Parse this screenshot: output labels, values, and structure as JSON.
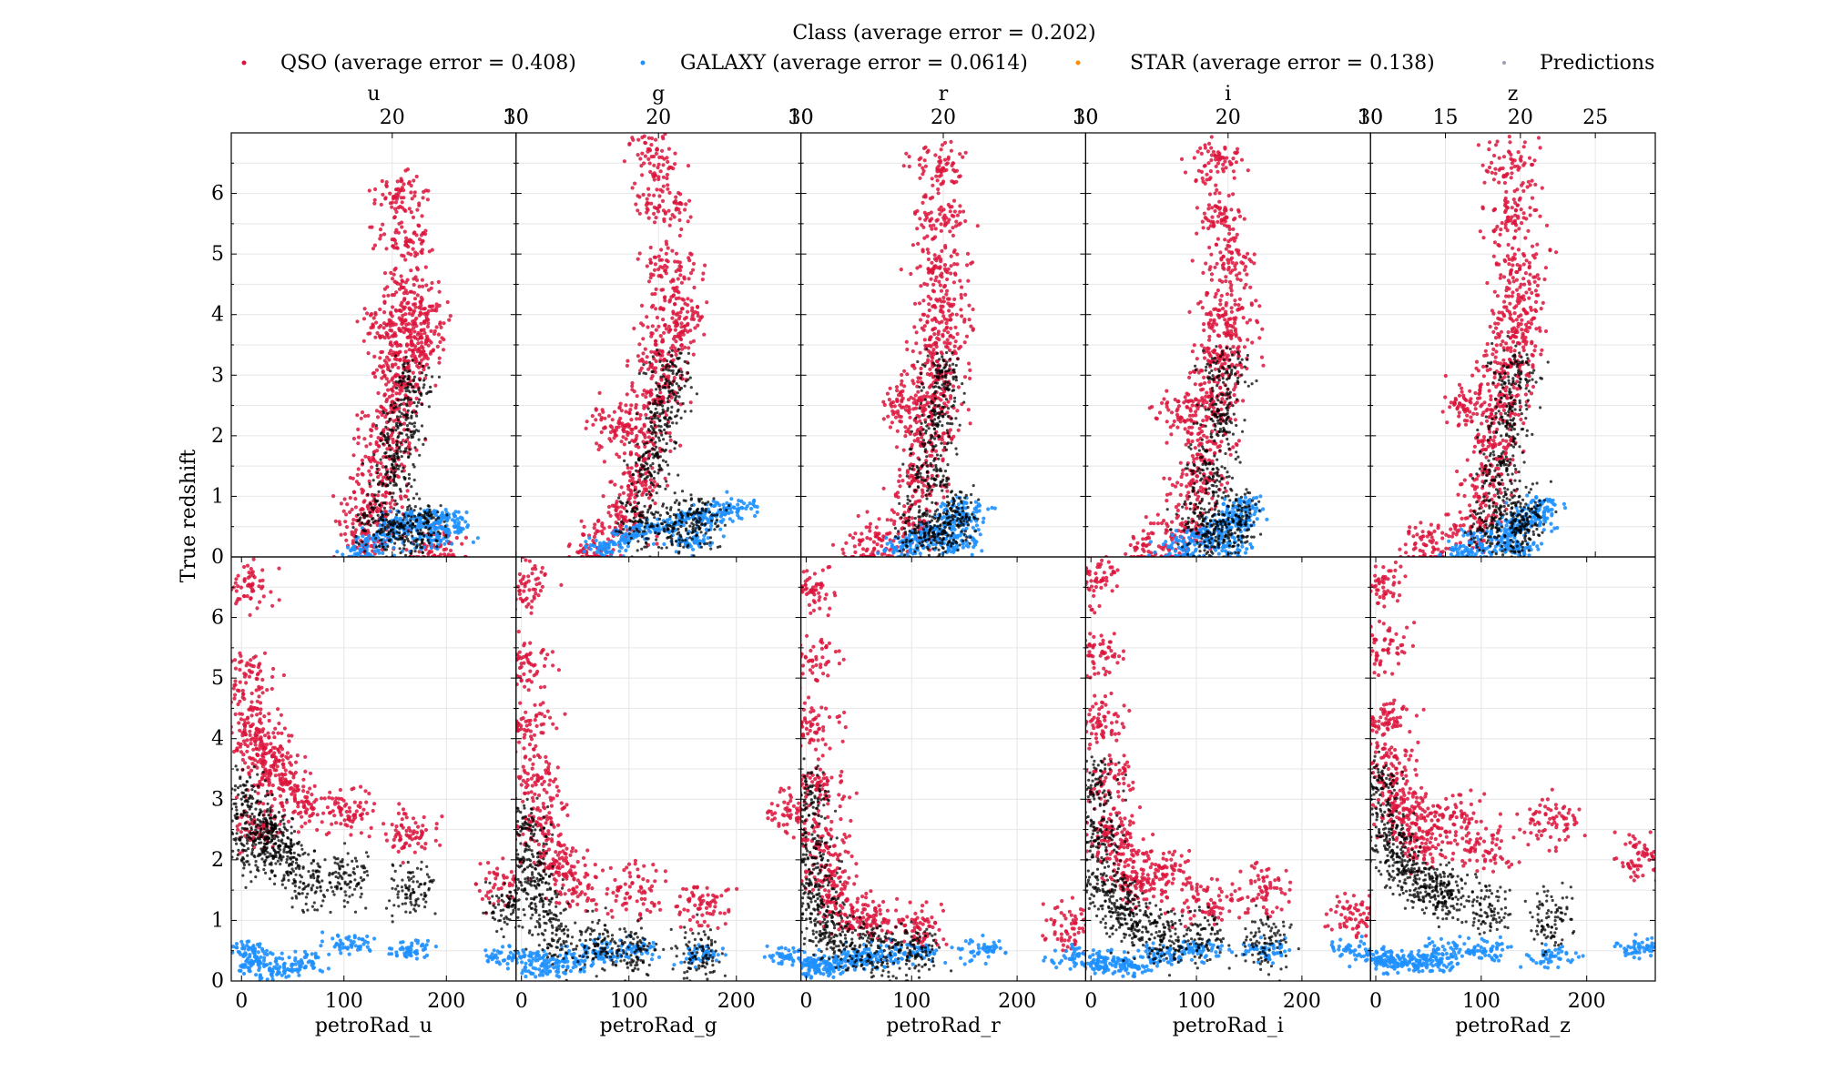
{
  "legend": {
    "title": "Class (average error = 0.202)",
    "items": [
      {
        "label": "QSO (average error = 0.408)",
        "color": "#dc143c"
      },
      {
        "label": "GALAXY (average error = 0.0614)",
        "color": "#1e90ff"
      },
      {
        "label": "STAR (average error = 0.138)",
        "color": "#ff8c00"
      },
      {
        "label": "Predictions",
        "color": "#9aa0b4"
      }
    ]
  },
  "colors": {
    "QSO": "#dc143c",
    "GALAXY": "#1e90ff",
    "STAR": "#ff8c00",
    "Predictions": "#000000"
  },
  "ylabel": "True redshift",
  "chart_data": {
    "type": "scatter",
    "ylabel": "True redshift",
    "ylim": [
      0,
      7
    ],
    "yticks": [
      0,
      1,
      2,
      3,
      4,
      5,
      6
    ],
    "grid": true,
    "legend_placement": "top",
    "series": [
      "QSO",
      "GALAXY",
      "STAR",
      "Predictions"
    ],
    "top_row": [
      {
        "xlabel": "u",
        "xlim": [
          7,
          30
        ],
        "xticks": [
          20,
          30
        ],
        "xticklabels": [
          "20",
          "30"
        ],
        "qso": [
          [
            18.2,
            0.7
          ],
          [
            19.0,
            1.2
          ],
          [
            19.5,
            1.8
          ],
          [
            20.0,
            2.4
          ],
          [
            20.6,
            2.9
          ],
          [
            21.2,
            3.3
          ],
          [
            21.8,
            3.6
          ],
          [
            22.1,
            3.9
          ],
          [
            21.5,
            4.4
          ],
          [
            21.0,
            5.2
          ],
          [
            20.6,
            6.0
          ],
          [
            19.6,
            3.8
          ],
          [
            17.9,
            0.3
          ],
          [
            23.5,
            0.1
          ]
        ],
        "galaxy": [
          [
            17.8,
            0.1
          ],
          [
            19.2,
            0.35
          ],
          [
            20.6,
            0.55
          ],
          [
            22.0,
            0.6
          ],
          [
            23.8,
            0.65
          ],
          [
            24.6,
            0.45
          ],
          [
            22.8,
            0.3
          ]
        ],
        "pred": [
          [
            19.0,
            0.6
          ],
          [
            20.0,
            1.4
          ],
          [
            20.8,
            2.1
          ],
          [
            21.5,
            2.8
          ],
          [
            20.8,
            0.4
          ],
          [
            22.5,
            0.5
          ]
        ]
      },
      {
        "xlabel": "g",
        "xlim": [
          10,
          30
        ],
        "xticks": [
          10,
          20,
          30
        ],
        "xticklabels": [
          "10",
          "20",
          "30"
        ],
        "qso": [
          [
            17.5,
            0.6
          ],
          [
            18.5,
            1.2
          ],
          [
            19.2,
            1.9
          ],
          [
            19.8,
            2.6
          ],
          [
            20.3,
            3.2
          ],
          [
            20.8,
            3.7
          ],
          [
            21.2,
            4.1
          ],
          [
            20.8,
            4.8
          ],
          [
            20.4,
            5.8
          ],
          [
            20.0,
            6.6
          ],
          [
            17.0,
            2.2
          ],
          [
            15.5,
            0.1
          ]
        ],
        "galaxy": [
          [
            16.5,
            0.15
          ],
          [
            18.0,
            0.35
          ],
          [
            20.0,
            0.5
          ],
          [
            22.2,
            0.62
          ],
          [
            24.0,
            0.7
          ],
          [
            25.5,
            0.8
          ],
          [
            22.5,
            0.25
          ]
        ],
        "pred": [
          [
            18.5,
            0.6
          ],
          [
            19.5,
            1.5
          ],
          [
            20.3,
            2.3
          ],
          [
            20.8,
            3.0
          ],
          [
            21.0,
            0.5
          ],
          [
            23.0,
            0.6
          ]
        ]
      },
      {
        "xlabel": "r",
        "xlim": [
          10,
          30
        ],
        "xticks": [
          10,
          20,
          30
        ],
        "xticklabels": [
          "10",
          "20",
          "30"
        ],
        "qso": [
          [
            17.5,
            0.5
          ],
          [
            18.2,
            1.2
          ],
          [
            18.8,
            1.9
          ],
          [
            19.2,
            2.6
          ],
          [
            19.6,
            3.1
          ],
          [
            19.9,
            3.6
          ],
          [
            20.1,
            4.1
          ],
          [
            20.0,
            4.8
          ],
          [
            19.7,
            5.6
          ],
          [
            19.6,
            6.5
          ],
          [
            17.2,
            2.5
          ],
          [
            15.0,
            0.2
          ]
        ],
        "galaxy": [
          [
            17.0,
            0.15
          ],
          [
            18.5,
            0.3
          ],
          [
            20.0,
            0.45
          ],
          [
            21.0,
            0.6
          ],
          [
            21.5,
            0.8
          ],
          [
            20.8,
            0.2
          ]
        ],
        "pred": [
          [
            18.2,
            0.5
          ],
          [
            19.0,
            1.4
          ],
          [
            19.6,
            2.2
          ],
          [
            20.0,
            3.0
          ],
          [
            19.8,
            0.4
          ],
          [
            21.0,
            0.7
          ]
        ]
      },
      {
        "xlabel": "i",
        "xlim": [
          10,
          30
        ],
        "xticks": [
          10,
          20,
          30
        ],
        "xticklabels": [
          "10",
          "20",
          "30"
        ],
        "qso": [
          [
            17.2,
            0.5
          ],
          [
            17.9,
            1.2
          ],
          [
            18.5,
            1.9
          ],
          [
            19.0,
            2.6
          ],
          [
            19.4,
            3.1
          ],
          [
            19.7,
            3.6
          ],
          [
            19.9,
            4.1
          ],
          [
            19.8,
            4.8
          ],
          [
            19.5,
            5.6
          ],
          [
            19.4,
            6.5
          ],
          [
            16.8,
            2.4
          ],
          [
            14.5,
            0.2
          ]
        ],
        "galaxy": [
          [
            16.5,
            0.1
          ],
          [
            18.0,
            0.3
          ],
          [
            19.6,
            0.45
          ],
          [
            20.5,
            0.6
          ],
          [
            21.0,
            0.85
          ],
          [
            20.2,
            0.15
          ]
        ],
        "pred": [
          [
            17.9,
            0.5
          ],
          [
            18.7,
            1.4
          ],
          [
            19.3,
            2.2
          ],
          [
            19.7,
            3.0
          ],
          [
            19.5,
            0.4
          ],
          [
            20.6,
            0.7
          ]
        ]
      },
      {
        "xlabel": "z",
        "xlim": [
          10,
          29
        ],
        "xticks": [
          10,
          15,
          20,
          25
        ],
        "xticklabels": [
          "10",
          "15",
          "20",
          "25"
        ],
        "qso": [
          [
            17.0,
            0.5
          ],
          [
            17.8,
            1.2
          ],
          [
            18.4,
            1.9
          ],
          [
            18.9,
            2.6
          ],
          [
            19.3,
            3.1
          ],
          [
            19.7,
            3.6
          ],
          [
            19.9,
            4.1
          ],
          [
            19.8,
            4.8
          ],
          [
            19.4,
            5.6
          ],
          [
            19.3,
            6.5
          ],
          [
            16.5,
            2.5
          ],
          [
            14.0,
            0.2
          ]
        ],
        "galaxy": [
          [
            16.2,
            0.1
          ],
          [
            17.8,
            0.3
          ],
          [
            19.4,
            0.45
          ],
          [
            20.6,
            0.6
          ],
          [
            21.2,
            0.85
          ],
          [
            20.0,
            0.15
          ]
        ],
        "pred": [
          [
            17.8,
            0.5
          ],
          [
            18.6,
            1.4
          ],
          [
            19.2,
            2.2
          ],
          [
            19.6,
            3.0
          ],
          [
            19.4,
            0.4
          ],
          [
            20.4,
            0.7
          ]
        ]
      }
    ],
    "bottom_row": [
      {
        "xlabel": "petroRad_u",
        "xlim": [
          -10,
          268
        ],
        "xticks": [
          0,
          100,
          200
        ],
        "xticklabels": [
          "0",
          "100",
          "200"
        ],
        "qso": [
          [
            2,
            6.5
          ],
          [
            4,
            5.0
          ],
          [
            8,
            4.3
          ],
          [
            18,
            3.9
          ],
          [
            28,
            3.6
          ],
          [
            40,
            3.4
          ],
          [
            60,
            2.9
          ],
          [
            105,
            2.8
          ],
          [
            165,
            2.4
          ],
          [
            260,
            1.6
          ],
          [
            12,
            2.6
          ]
        ],
        "galaxy": [
          [
            5,
            0.5
          ],
          [
            15,
            0.3
          ],
          [
            30,
            0.2
          ],
          [
            60,
            0.3
          ],
          [
            105,
            0.6
          ],
          [
            165,
            0.5
          ],
          [
            260,
            0.4
          ]
        ],
        "pred": [
          [
            4,
            3.0
          ],
          [
            10,
            2.2
          ],
          [
            20,
            2.5
          ],
          [
            30,
            2.4
          ],
          [
            45,
            2.1
          ],
          [
            65,
            1.6
          ],
          [
            105,
            1.7
          ],
          [
            165,
            1.5
          ],
          [
            260,
            1.2
          ]
        ]
      },
      {
        "xlabel": "petroRad_g",
        "xlim": [
          -5,
          260
        ],
        "xticks": [
          0,
          100,
          200
        ],
        "xticklabels": [
          "0",
          "100",
          "200"
        ],
        "qso": [
          [
            2,
            6.5
          ],
          [
            5,
            5.2
          ],
          [
            8,
            4.2
          ],
          [
            12,
            3.3
          ],
          [
            18,
            2.6
          ],
          [
            30,
            2.0
          ],
          [
            50,
            1.6
          ],
          [
            105,
            1.5
          ],
          [
            165,
            1.2
          ],
          [
            250,
            2.8
          ]
        ],
        "galaxy": [
          [
            5,
            0.4
          ],
          [
            20,
            0.2
          ],
          [
            45,
            0.3
          ],
          [
            70,
            0.5
          ],
          [
            105,
            0.5
          ],
          [
            165,
            0.45
          ],
          [
            250,
            0.4
          ]
        ],
        "pred": [
          [
            4,
            2.6
          ],
          [
            8,
            1.9
          ],
          [
            15,
            1.4
          ],
          [
            30,
            0.8
          ],
          [
            70,
            0.6
          ],
          [
            105,
            0.5
          ],
          [
            165,
            0.4
          ]
        ]
      },
      {
        "xlabel": "petroRad_r",
        "xlim": [
          -5,
          265
        ],
        "xticks": [
          0,
          100,
          200
        ],
        "xticklabels": [
          "0",
          "100",
          "200"
        ],
        "qso": [
          [
            2,
            6.5
          ],
          [
            4,
            5.3
          ],
          [
            7,
            4.2
          ],
          [
            10,
            3.2
          ],
          [
            14,
            2.4
          ],
          [
            20,
            1.7
          ],
          [
            35,
            1.2
          ],
          [
            60,
            1.0
          ],
          [
            105,
            0.9
          ],
          [
            250,
            0.9
          ]
        ],
        "galaxy": [
          [
            5,
            0.3
          ],
          [
            15,
            0.2
          ],
          [
            30,
            0.3
          ],
          [
            50,
            0.4
          ],
          [
            70,
            0.4
          ],
          [
            105,
            0.5
          ],
          [
            165,
            0.5
          ],
          [
            250,
            0.4
          ]
        ],
        "pred": [
          [
            3,
            3.0
          ],
          [
            6,
            2.1
          ],
          [
            10,
            1.4
          ],
          [
            18,
            0.9
          ],
          [
            40,
            0.6
          ],
          [
            70,
            0.5
          ],
          [
            105,
            0.5
          ]
        ]
      },
      {
        "xlabel": "petroRad_i",
        "xlim": [
          -5,
          265
        ],
        "xticks": [
          0,
          100,
          200
        ],
        "xticklabels": [
          "0",
          "100",
          "200"
        ],
        "qso": [
          [
            2,
            6.6
          ],
          [
            4,
            5.4
          ],
          [
            7,
            4.3
          ],
          [
            12,
            3.3
          ],
          [
            20,
            2.5
          ],
          [
            30,
            2.0
          ],
          [
            45,
            1.6
          ],
          [
            70,
            1.8
          ],
          [
            105,
            1.3
          ],
          [
            165,
            1.5
          ],
          [
            250,
            1.1
          ]
        ],
        "galaxy": [
          [
            5,
            0.3
          ],
          [
            20,
            0.3
          ],
          [
            45,
            0.25
          ],
          [
            70,
            0.45
          ],
          [
            105,
            0.5
          ],
          [
            165,
            0.5
          ],
          [
            250,
            0.5
          ]
        ],
        "pred": [
          [
            4,
            3.2
          ],
          [
            8,
            2.4
          ],
          [
            15,
            1.6
          ],
          [
            25,
            1.2
          ],
          [
            45,
            0.9
          ],
          [
            70,
            0.7
          ],
          [
            105,
            0.7
          ],
          [
            165,
            0.6
          ]
        ]
      },
      {
        "xlabel": "petroRad_z",
        "xlim": [
          -5,
          265
        ],
        "xticks": [
          0,
          100,
          200
        ],
        "xticklabels": [
          "0",
          "100",
          "200"
        ],
        "qso": [
          [
            2,
            6.5
          ],
          [
            5,
            5.5
          ],
          [
            9,
            4.3
          ],
          [
            14,
            3.6
          ],
          [
            20,
            3.0
          ],
          [
            30,
            2.6
          ],
          [
            45,
            2.3
          ],
          [
            70,
            2.7
          ],
          [
            105,
            2.2
          ],
          [
            165,
            2.6
          ],
          [
            250,
            2.0
          ]
        ],
        "galaxy": [
          [
            5,
            0.4
          ],
          [
            20,
            0.3
          ],
          [
            35,
            0.3
          ],
          [
            55,
            0.3
          ],
          [
            70,
            0.5
          ],
          [
            105,
            0.5
          ],
          [
            165,
            0.4
          ],
          [
            250,
            0.5
          ]
        ],
        "pred": [
          [
            4,
            3.2
          ],
          [
            10,
            2.5
          ],
          [
            20,
            2.0
          ],
          [
            35,
            1.7
          ],
          [
            55,
            1.5
          ],
          [
            70,
            1.4
          ],
          [
            105,
            1.2
          ],
          [
            165,
            1.0
          ]
        ]
      }
    ]
  }
}
